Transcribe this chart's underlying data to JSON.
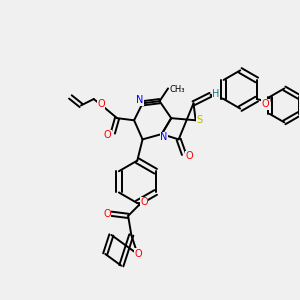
{
  "background_color": "#f0f0f0",
  "line_color": "#000000",
  "bond_width": 1.4,
  "atom_colors": {
    "O": "#ff0000",
    "N": "#0000ff",
    "S": "#b8b800",
    "H": "#008080",
    "C": "#000000"
  },
  "figsize": [
    3.0,
    3.0
  ],
  "dpi": 100
}
